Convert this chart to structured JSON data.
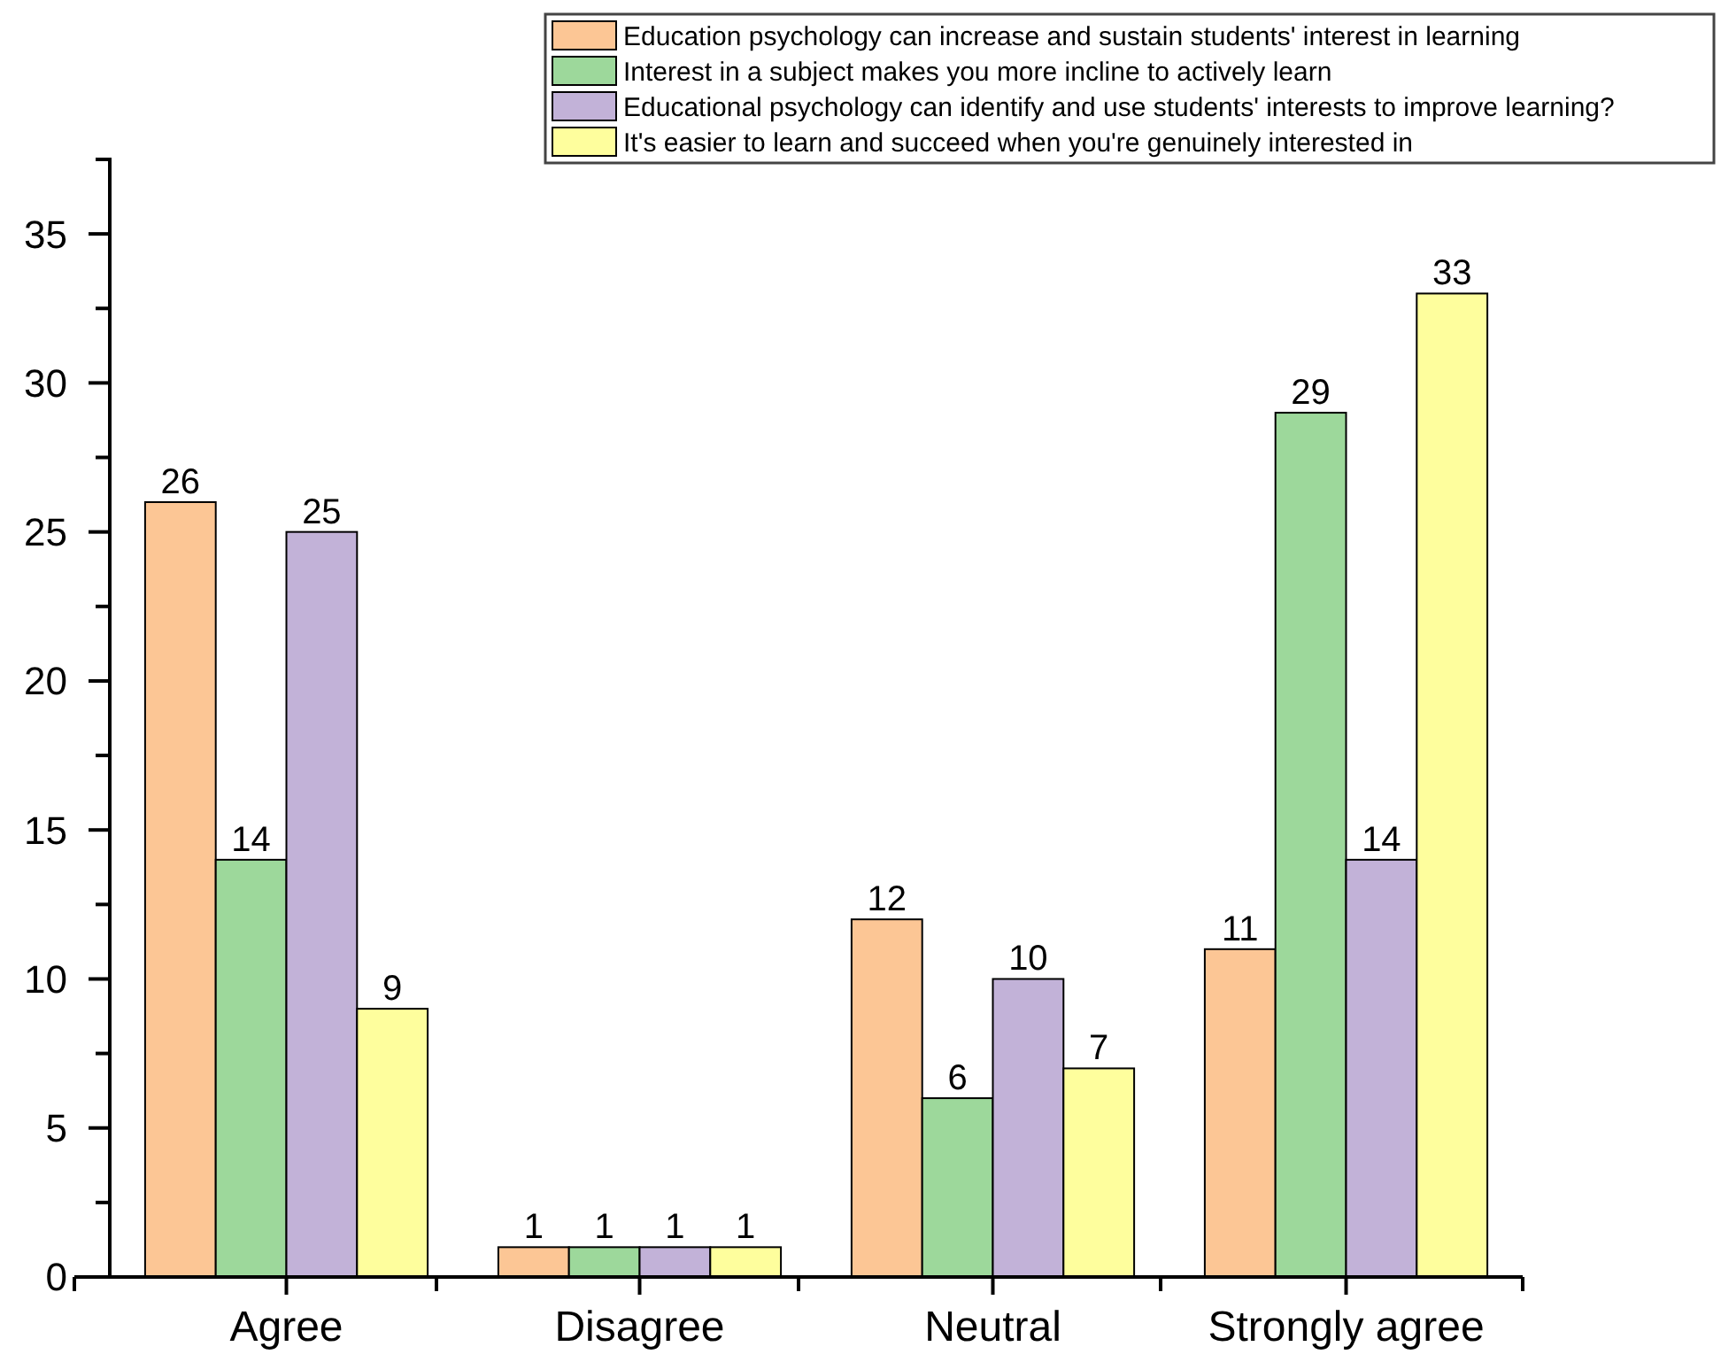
{
  "chart_data": {
    "type": "bar",
    "categories": [
      "Agree",
      "Disagree",
      "Neutral",
      "Strongly agree"
    ],
    "series": [
      {
        "name": "Education psychology can increase and sustain students' interest in learning",
        "color": "#fcc695",
        "values": [
          26,
          1,
          12,
          11
        ]
      },
      {
        "name": "Interest in a subject makes you more incline to actively learn",
        "color": "#9dd89b",
        "values": [
          14,
          1,
          6,
          29
        ]
      },
      {
        "name": "Educational psychology can identify and use students' interests to improve learning?",
        "color": "#c2b2d8",
        "values": [
          25,
          1,
          10,
          14
        ]
      },
      {
        "name": "It's easier to learn and succeed when you're genuinely interested in",
        "color": "#fefe9d",
        "values": [
          9,
          1,
          7,
          33
        ]
      }
    ],
    "ylim": [
      0,
      37.5
    ],
    "yticks": [
      0,
      {
        "value": 2.5,
        "label": null
      },
      5,
      {
        "value": 7.5,
        "label": null
      },
      10,
      {
        "value": 12.5,
        "label": null
      },
      15,
      {
        "value": 17.5,
        "label": null
      },
      20,
      {
        "value": 22.5,
        "label": null
      },
      25,
      {
        "value": 27.5,
        "label": null
      },
      30,
      {
        "value": 32.5,
        "label": null
      },
      35,
      {
        "value": 37.5,
        "label": null
      }
    ],
    "data_labels": true,
    "legend": "top right",
    "grid": false
  }
}
